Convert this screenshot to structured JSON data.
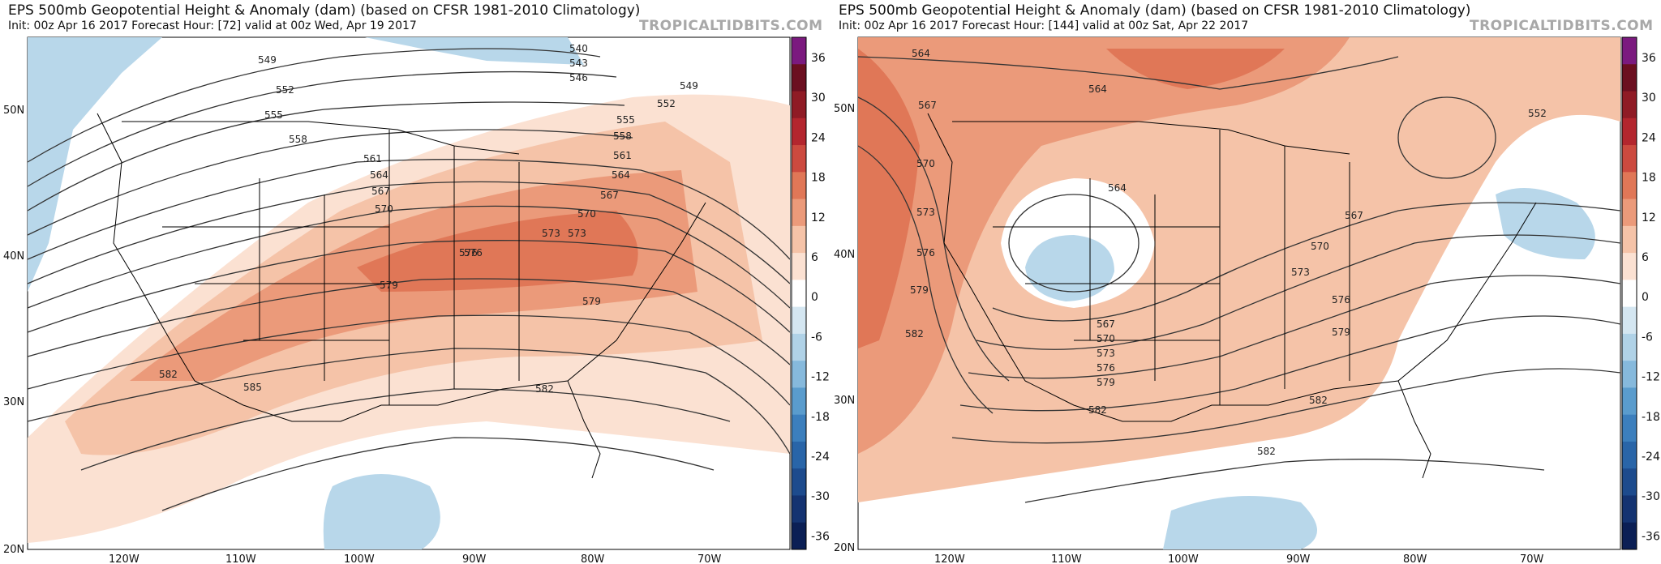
{
  "panels": [
    {
      "title": "EPS 500mb Geopotential Height & Anomaly (dam) (based on CFSR 1981-2010 Climatology)",
      "subtitle": "Init: 00z Apr 16 2017   Forecast Hour: [72]   valid at 00z Wed, Apr 19 2017",
      "brand": "TROPICALTIDBITS.COM",
      "lat_labels": [
        "50N",
        "40N",
        "30N",
        "20N"
      ],
      "lon_labels": [
        "120W",
        "110W",
        "100W",
        "90W",
        "80W",
        "70W"
      ],
      "contour_labels": [
        "549",
        "552",
        "555",
        "558",
        "561",
        "564",
        "567",
        "570",
        "573",
        "576",
        "579",
        "582",
        "585",
        "540",
        "543",
        "546",
        "549",
        "552",
        "555",
        "558",
        "561",
        "564",
        "567",
        "570",
        "573",
        "576",
        "579",
        "582"
      ],
      "anomaly_pattern": "ridge",
      "description_colors": {
        "positive": "#e8896c",
        "negative": "#9ecae1"
      }
    },
    {
      "title": "EPS 500mb Geopotential Height & Anomaly (dam) (based on CFSR 1981-2010 Climatology)",
      "subtitle": "Init: 00z Apr 16 2017   Forecast Hour: [144]   valid at 00z Sat, Apr 22 2017",
      "brand": "TROPICALTIDBITS.COM",
      "lat_labels": [
        "50N",
        "40N",
        "30N",
        "20N"
      ],
      "lon_labels": [
        "120W",
        "110W",
        "100W",
        "90W",
        "80W",
        "70W"
      ],
      "contour_labels": [
        "564",
        "567",
        "570",
        "573",
        "576",
        "579",
        "582",
        "564",
        "567",
        "570",
        "573",
        "576",
        "579",
        "567",
        "570",
        "573",
        "576",
        "579",
        "582",
        "564",
        "552",
        "582",
        "582"
      ],
      "anomaly_pattern": "trough",
      "description_colors": {
        "positive": "#e8896c",
        "negative": "#9ecae1"
      }
    }
  ],
  "colorbar": {
    "labels": [
      "36",
      "30",
      "24",
      "18",
      "12",
      "6",
      "0",
      "-6",
      "-12",
      "-18",
      "-24",
      "-30",
      "-36"
    ],
    "colors": [
      "#7b1a7f",
      "#6b0f20",
      "#8f1b25",
      "#b3262e",
      "#cc4a3f",
      "#e07757",
      "#eb9a7a",
      "#f5c3a8",
      "#fbe1d2",
      "#ffffff",
      "#d4e6f1",
      "#b0d2e7",
      "#86b9dc",
      "#5a9ccd",
      "#3c7fbd",
      "#2965a8",
      "#1d4b8d",
      "#143371",
      "#0b1f55"
    ]
  }
}
